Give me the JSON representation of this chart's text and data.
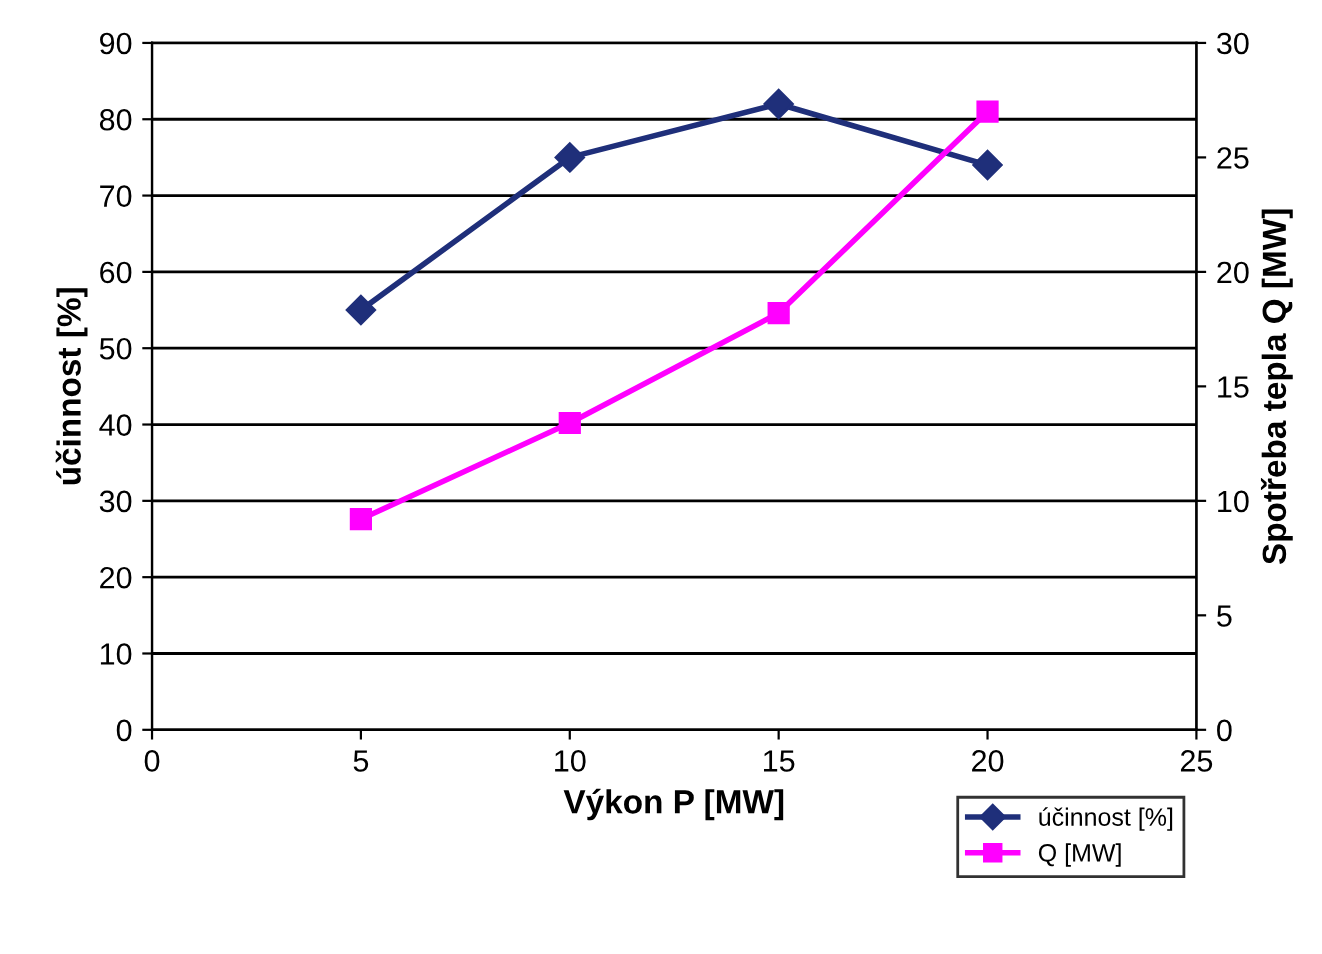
{
  "chart_data": {
    "type": "line",
    "xlabel": "Výkon P [MW]",
    "ylabel": "účinnost [%]",
    "y2label": "Spotřeba tepla Q [MW]",
    "x": [
      5,
      10,
      15,
      20
    ],
    "series": [
      {
        "name": "účinnost [%]",
        "color": "#1f2f7a",
        "values": [
          55,
          75,
          82,
          74
        ],
        "marker": "diamond"
      },
      {
        "name": "Q [MW]",
        "color": "#ff00ff",
        "values": [
          9.2,
          13.4,
          18.2,
          27
        ],
        "marker": "square",
        "axis": "y2"
      }
    ],
    "xlim": [
      0,
      25
    ],
    "xticks": [
      0,
      5,
      10,
      15,
      20,
      25
    ],
    "ylim": [
      0,
      90
    ],
    "yticks": [
      0,
      10,
      20,
      30,
      40,
      50,
      60,
      70,
      80,
      90
    ],
    "y2lim": [
      0,
      30
    ],
    "y2ticks": [
      0,
      5,
      10,
      15,
      20,
      25,
      30
    ],
    "grid": "y",
    "legend": "bottom right",
    "line_style": "solid"
  }
}
